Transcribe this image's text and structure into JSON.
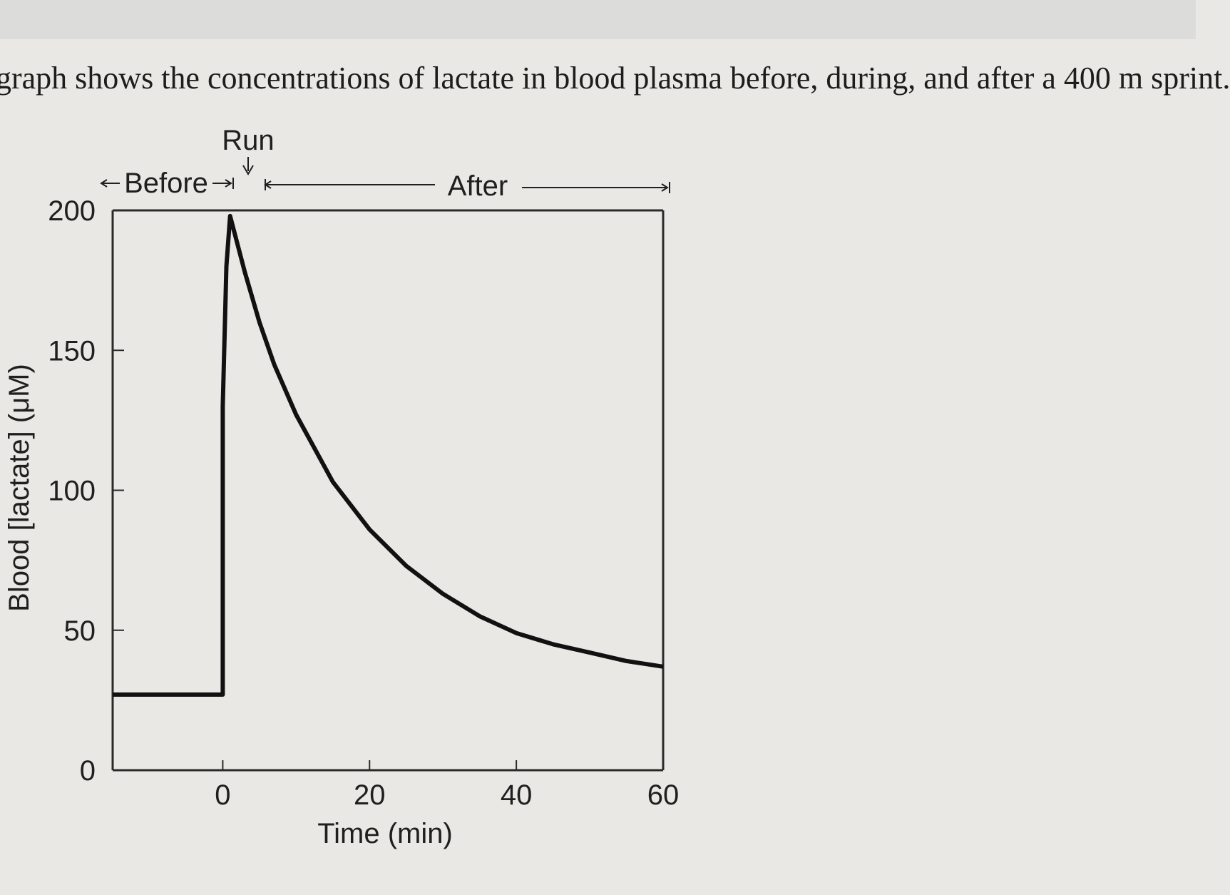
{
  "caption": "graph shows the concentrations of lactate in blood plasma before, during, and after a 400 m sprint.",
  "chart_data": {
    "type": "line",
    "title": "",
    "xlabel": "Time (min)",
    "ylabel": "Blood [lactate] (μM)",
    "xlim": [
      -15,
      60
    ],
    "ylim": [
      0,
      200
    ],
    "x_ticks": [
      0,
      20,
      40,
      60
    ],
    "x_tick_labels": [
      "0",
      "20",
      "40",
      "60"
    ],
    "y_ticks": [
      0,
      50,
      100,
      150,
      200
    ],
    "y_tick_labels": [
      "0",
      "50",
      "100",
      "150",
      "200"
    ],
    "grid": false,
    "series": [
      {
        "color": "#111111",
        "points": [
          [
            -15,
            27
          ],
          [
            0,
            27
          ],
          [
            0,
            130
          ],
          [
            0.5,
            180
          ],
          [
            1,
            198
          ],
          [
            3,
            178
          ],
          [
            5,
            160
          ],
          [
            7,
            145
          ],
          [
            10,
            127
          ],
          [
            15,
            103
          ],
          [
            20,
            86
          ],
          [
            25,
            73
          ],
          [
            30,
            63
          ],
          [
            35,
            55
          ],
          [
            40,
            49
          ],
          [
            45,
            45
          ],
          [
            50,
            42
          ],
          [
            55,
            39
          ],
          [
            60,
            37
          ]
        ]
      }
    ],
    "annotations": {
      "run": "Run",
      "before": "Before",
      "after": "After"
    }
  }
}
